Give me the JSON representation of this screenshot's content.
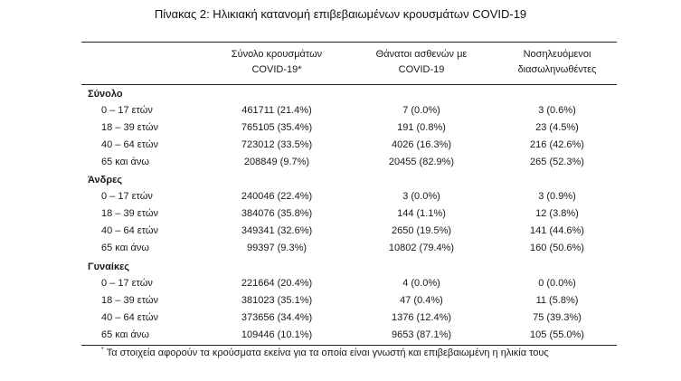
{
  "title": "Πίνακας 2: Ηλικιακή κατανομή επιβεβαιωμένων κρουσμάτων COVID-19",
  "headers": {
    "col1_line1": "Σύνολο κρουσμάτων",
    "col1_line2": "COVID-19*",
    "col2_line1": "Θάνατοι ασθενών με",
    "col2_line2": "COVID-19",
    "col3_line1": "Νοσηλευόμενοι",
    "col3_line2": "διασωληνωθέντες"
  },
  "groups": [
    {
      "label": "Σύνολο",
      "rows": [
        {
          "age": "0 – 17 ετών",
          "cases": "461711 (21.4%)",
          "deaths": "7 (0.0%)",
          "intubated": "3 (0.6%)"
        },
        {
          "age": "18 – 39 ετών",
          "cases": "765105 (35.4%)",
          "deaths": "191 (0.8%)",
          "intubated": "23 (4.5%)"
        },
        {
          "age": "40 – 64 ετών",
          "cases": "723012 (33.5%)",
          "deaths": "4026 (16.3%)",
          "intubated": "216 (42.6%)"
        },
        {
          "age": "65 και άνω",
          "cases": "208849 (9.7%)",
          "deaths": "20455 (82.9%)",
          "intubated": "265 (52.3%)"
        }
      ]
    },
    {
      "label": "Άνδρες",
      "rows": [
        {
          "age": "0 – 17 ετών",
          "cases": "240046 (22.4%)",
          "deaths": "3 (0.0%)",
          "intubated": "3 (0.9%)"
        },
        {
          "age": "18 – 39 ετών",
          "cases": "384076 (35.8%)",
          "deaths": "144 (1.1%)",
          "intubated": "12 (3.8%)"
        },
        {
          "age": "40 – 64 ετών",
          "cases": "349341 (32.6%)",
          "deaths": "2650 (19.5%)",
          "intubated": "141 (44.6%)"
        },
        {
          "age": "65 και άνω",
          "cases": "99397 (9.3%)",
          "deaths": "10802 (79.4%)",
          "intubated": "160 (50.6%)"
        }
      ]
    },
    {
      "label": "Γυναίκες",
      "rows": [
        {
          "age": "0 – 17 ετών",
          "cases": "221664 (20.4%)",
          "deaths": "4 (0.0%)",
          "intubated": "0 (0.0%)"
        },
        {
          "age": "18 – 39 ετών",
          "cases": "381023 (35.1%)",
          "deaths": "47 (0.4%)",
          "intubated": "11 (5.8%)"
        },
        {
          "age": "40 – 64 ετών",
          "cases": "373656 (34.4%)",
          "deaths": "1376 (12.4%)",
          "intubated": "75 (39.3%)"
        },
        {
          "age": "65 και άνω",
          "cases": "109446 (10.1%)",
          "deaths": "9653 (87.1%)",
          "intubated": "105 (55.0%)"
        }
      ]
    }
  ],
  "footnote": {
    "marker": "*",
    "text": "Τα στοιχεία αφορούν τα κρούσματα εκείνα για τα οποία είναι γνωστή και επιβεβαιωμένη η ηλικία τους"
  }
}
